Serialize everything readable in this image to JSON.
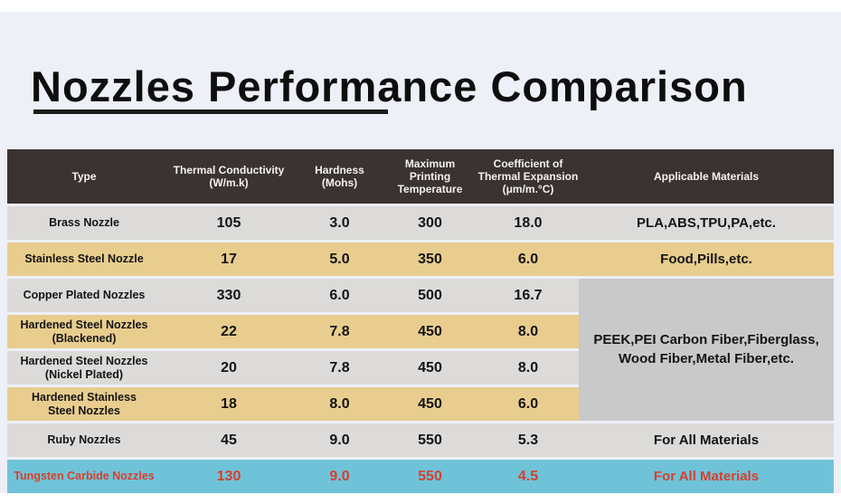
{
  "title": "Nozzles Performance Comparison",
  "table": {
    "headers": [
      "Type",
      "Thermal Conductivity\n(W/m.k)",
      "Hardness\n(Mohs)",
      "Maximum\nPrinting\nTemperature",
      "Coefficient of\nThermal Expansion\n(μm/m.°C)",
      "Applicable Materials"
    ],
    "rows": [
      {
        "type": "Brass Nozzle",
        "conductivity": "105",
        "hardness": "3.0",
        "max_temp": "300",
        "expansion": "18.0",
        "materials": "PLA,ABS,TPU,PA,etc."
      },
      {
        "type": "Stainless Steel Nozzle",
        "conductivity": "17",
        "hardness": "5.0",
        "max_temp": "350",
        "expansion": "6.0",
        "materials": "Food,Pills,etc."
      },
      {
        "type": "Copper Plated Nozzles",
        "conductivity": "330",
        "hardness": "6.0",
        "max_temp": "500",
        "expansion": "16.7"
      },
      {
        "type": "Hardened Steel Nozzles\n(Blackened)",
        "conductivity": "22",
        "hardness": "7.8",
        "max_temp": "450",
        "expansion": "8.0"
      },
      {
        "type": "Hardened Steel Nozzles\n(Nickel Plated)",
        "conductivity": "20",
        "hardness": "7.8",
        "max_temp": "450",
        "expansion": "8.0"
      },
      {
        "type": "Hardened Stainless\nSteel Nozzles",
        "conductivity": "18",
        "hardness": "8.0",
        "max_temp": "450",
        "expansion": "6.0"
      },
      {
        "type": "Ruby Nozzles",
        "conductivity": "45",
        "hardness": "9.0",
        "max_temp": "550",
        "expansion": "5.3",
        "materials": "For All Materials"
      },
      {
        "type": "Tungsten Carbide Nozzles",
        "conductivity": "130",
        "hardness": "9.0",
        "max_temp": "550",
        "expansion": "4.5",
        "materials": "For All Materials"
      }
    ],
    "merged_materials": "PEEK,PEI Carbon Fiber,Fiberglass,\nWood Fiber,Metal Fiber,etc."
  },
  "colors": {
    "header_bg": "#3a3331",
    "row_gray": "#dcdbd9",
    "row_tan": "#e8cd8e",
    "row_cyan": "#6fc3d8",
    "merged_gray": "#c9c9c9",
    "highlight_red": "#d7402e",
    "page_bg": "#edf0f7"
  }
}
